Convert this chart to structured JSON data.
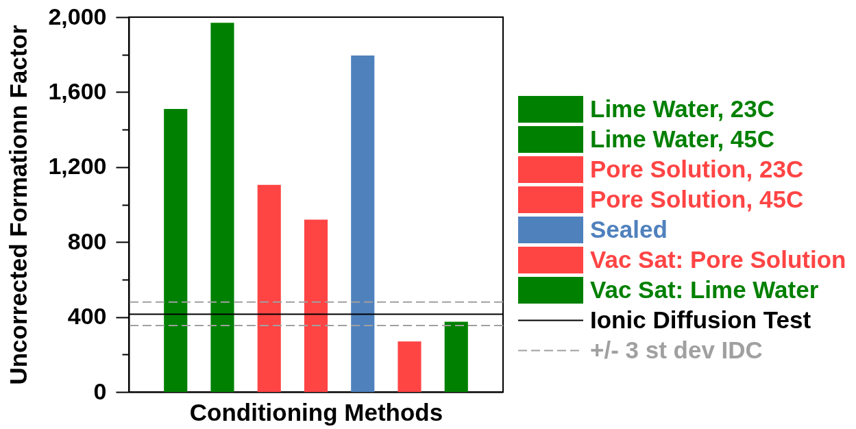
{
  "chart_data": {
    "type": "bar",
    "xlabel": "Conditioning Methods",
    "ylabel": "Uncorrected Formationn Factor",
    "categories": [
      null,
      null,
      null,
      null,
      null,
      null,
      null
    ],
    "series": [
      {
        "name": "Lime Water, 23C",
        "color": "#008000",
        "values": [
          1510,
          null,
          null,
          null,
          null,
          null,
          null
        ]
      },
      {
        "name": "Lime Water, 45C",
        "color": "#008000",
        "values": [
          null,
          1970,
          null,
          null,
          null,
          null,
          null
        ]
      },
      {
        "name": "Pore Solution, 23C",
        "color": "#ff4444",
        "values": [
          null,
          null,
          1105,
          null,
          null,
          null,
          null
        ]
      },
      {
        "name": "Pore Solution, 45C",
        "color": "#ff4444",
        "values": [
          null,
          null,
          null,
          920,
          null,
          null,
          null
        ]
      },
      {
        "name": "Sealed",
        "color": "#4f81bd",
        "values": [
          null,
          null,
          null,
          null,
          1795,
          null,
          null
        ]
      },
      {
        "name": "Vac Sat: Pore Solution",
        "color": "#ff4444",
        "values": [
          null,
          null,
          null,
          null,
          null,
          270,
          null
        ]
      },
      {
        "name": "Vac Sat: Lime Water",
        "color": "#008000",
        "values": [
          null,
          null,
          null,
          null,
          null,
          null,
          375
        ]
      }
    ],
    "ylim": [
      0,
      2000
    ],
    "yticks": [
      0,
      {
        "value": 200,
        "label": null
      },
      400,
      {
        "value": 600,
        "label": null
      },
      800,
      {
        "value": 1000,
        "label": null
      },
      {
        "value": 1200,
        "label": "1,200"
      },
      {
        "value": 1400,
        "label": null
      },
      {
        "value": 1600,
        "label": "1,600"
      },
      {
        "value": 1800,
        "label": null
      },
      {
        "value": 2000,
        "label": "2,000"
      }
    ],
    "ref_lines": [
      {
        "axis": "y",
        "value": 415,
        "label": "Ionic Diffusion Test",
        "color": "#000000",
        "line_style": "solid"
      },
      {
        "axis": "y",
        "value": 480,
        "label": "+/- 3 st dev IDC",
        "color": "#a0a0a0",
        "line_style": "dashed"
      },
      {
        "axis": "y",
        "value": 355,
        "color": "#a0a0a0",
        "line_style": "dashed"
      }
    ],
    "legend": "right",
    "tick_labels": "y"
  }
}
